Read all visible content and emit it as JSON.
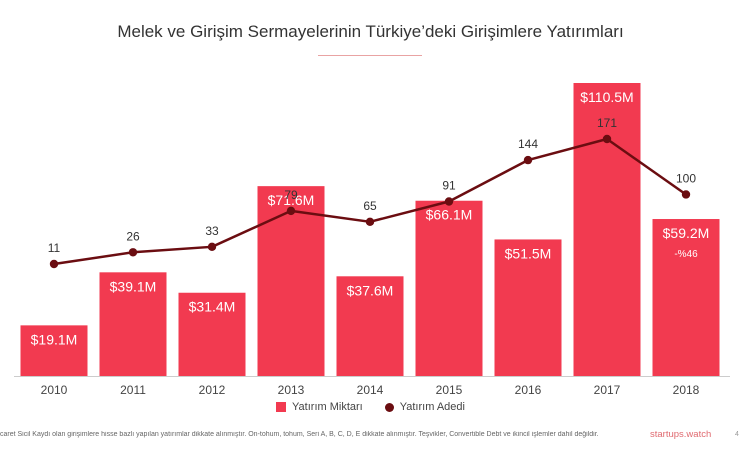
{
  "chart_data": {
    "type": "bar",
    "title": "Melek ve Girişim Sermayelerinin Türkiye’deki Girişimlere Yatırımları",
    "categories": [
      "2010",
      "2011",
      "2012",
      "2013",
      "2014",
      "2015",
      "2016",
      "2017",
      "2018"
    ],
    "series": [
      {
        "name": "Yatırım Miktarı",
        "type": "bar",
        "values": [
          19.1,
          39.1,
          31.4,
          71.6,
          37.6,
          66.1,
          51.5,
          110.5,
          59.2
        ],
        "labels": [
          "$19.1M",
          "$39.1M",
          "$31.4M",
          "$71.6M",
          "$37.6M",
          "$66.1M",
          "$51.5M",
          "$110.5M",
          "$59.2M"
        ]
      },
      {
        "name": "Yatırım Adedi",
        "type": "line",
        "values": [
          11,
          26,
          33,
          79,
          65,
          91,
          144,
          171,
          100
        ],
        "labels": [
          "11",
          "26",
          "33",
          "79",
          "65",
          "91",
          "144",
          "171",
          "100"
        ]
      }
    ],
    "annotations": [
      {
        "category": "2018",
        "text": "-%46"
      }
    ],
    "grid": false,
    "legend_position": "bottom",
    "colors": {
      "bar": "#f23a50",
      "line": "#6b0d11"
    }
  },
  "footnote": "caret Sicil Kaydı olan girişimlere hisse bazlı yapılan yatırımlar dikkate alınmıştır. Ön-tohum, tohum, Seri A, B, C, D, E dikkate alınmıştır. Teşvikler, Convertible Debt ve ikincil işlemler dahil değildir.",
  "brand": "startups.watch",
  "page_number": "4"
}
